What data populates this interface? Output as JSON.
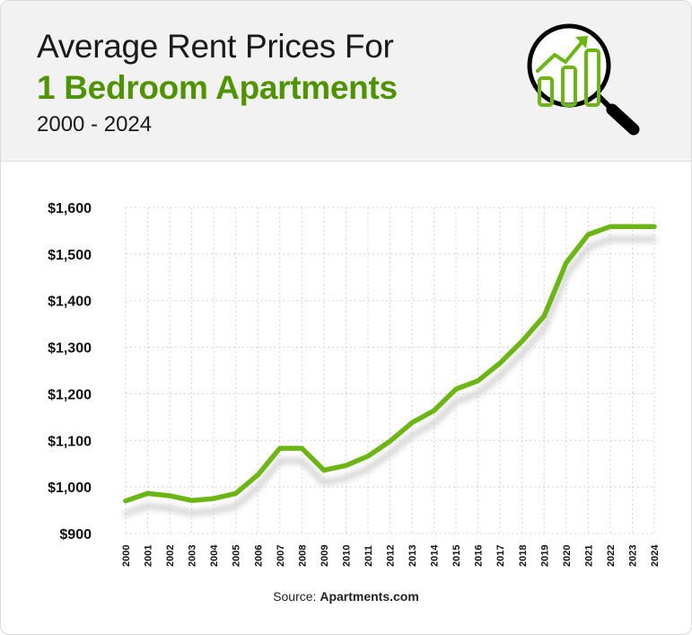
{
  "header": {
    "title_line1": "Average Rent Prices For",
    "title_line2": "1 Bedroom Apartments",
    "subtitle": "2000 - 2024",
    "icon": "magnifier-growth-chart-icon"
  },
  "source": {
    "prefix": "Source: ",
    "name": "Apartments.com"
  },
  "colors": {
    "accent": "#6cb614",
    "title_accent": "#4f9400",
    "grid": "#d4d4d4",
    "shadow": "#cfcfcf"
  },
  "chart_data": {
    "type": "line",
    "title": "Average Rent Prices For 1 Bedroom Apartments",
    "subtitle": "2000 - 2024",
    "xlabel": "",
    "ylabel": "",
    "x": [
      "2000",
      "2001",
      "2002",
      "2003",
      "2004",
      "2005",
      "2006",
      "2007",
      "2008",
      "2009",
      "2010",
      "2011",
      "2012",
      "2013",
      "2014",
      "2015",
      "2016",
      "2017",
      "2018",
      "2019",
      "2020",
      "2021",
      "2022",
      "2023",
      "2024"
    ],
    "series": [
      {
        "values": [
          970,
          986,
          981,
          971,
          975,
          986,
          1026,
          1083,
          1083,
          1036,
          1046,
          1066,
          1098,
          1138,
          1164,
          1210,
          1228,
          1266,
          1313,
          1367,
          1481,
          1542,
          1559,
          1559,
          1559
        ]
      }
    ],
    "ylim": [
      900,
      1600
    ],
    "yticks": [
      900,
      1000,
      1100,
      1200,
      1300,
      1400,
      1500,
      1600
    ],
    "ytick_labels": [
      "$900",
      "$1,000",
      "$1,100",
      "$1,200",
      "$1,300",
      "$1,400",
      "$1,500",
      "$1,600"
    ],
    "grid": true
  }
}
